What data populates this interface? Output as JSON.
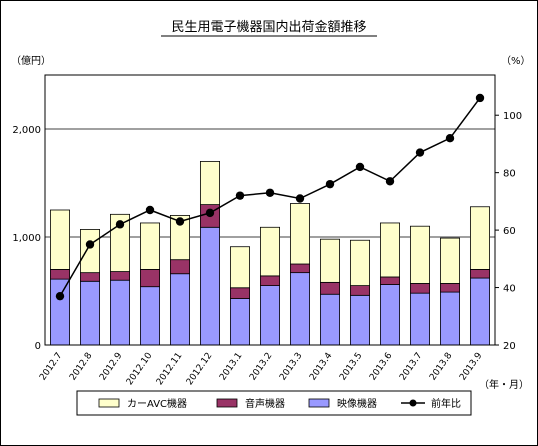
{
  "chart_data": {
    "type": "bar",
    "title": "民生用電子機器国内出荷金額推移",
    "left_unit": "（億円）",
    "right_unit": "（%）",
    "x_unit": "（年・月）",
    "categories": [
      "2012.7",
      "2012.8",
      "2012.9",
      "2012.10",
      "2012.11",
      "2012.12",
      "2013.1",
      "2013.2",
      "2013.3",
      "2013.4",
      "2013.5",
      "2013.6",
      "2013.7",
      "2013.8",
      "2013.9"
    ],
    "left_axis": {
      "min": 0,
      "max": 2500,
      "ticks": [
        0,
        1000,
        2000
      ],
      "tick_labels": [
        "0",
        "1,000",
        "2,000"
      ]
    },
    "right_axis": {
      "min": 20,
      "max": 114,
      "ticks": [
        20,
        40,
        60,
        80,
        100
      ],
      "tick_labels": [
        "20",
        "40",
        "60",
        "80",
        "100"
      ]
    },
    "grid": "horizontal",
    "legend_position": "bottom",
    "series": [
      {
        "name": "映像機器",
        "kind": "stacked-bar",
        "color": "#9999ff",
        "values": [
          610,
          590,
          600,
          540,
          660,
          1090,
          430,
          550,
          670,
          470,
          460,
          560,
          480,
          490,
          620
        ]
      },
      {
        "name": "音声機器",
        "kind": "stacked-bar",
        "color": "#993366",
        "values": [
          90,
          80,
          80,
          160,
          130,
          210,
          100,
          90,
          80,
          110,
          90,
          70,
          90,
          80,
          80
        ]
      },
      {
        "name": "カーAVC機器",
        "kind": "stacked-bar",
        "color": "#ffffcc",
        "values": [
          550,
          400,
          530,
          430,
          410,
          400,
          380,
          450,
          560,
          400,
          420,
          500,
          530,
          420,
          580
        ]
      },
      {
        "name": "前年比",
        "kind": "line",
        "axis": "right",
        "color": "#000000",
        "values": [
          37,
          55,
          62,
          67,
          63,
          66,
          72,
          73,
          71,
          76,
          82,
          77,
          87,
          92,
          106
        ]
      }
    ],
    "legend_order": [
      "カーAVC機器",
      "音声機器",
      "映像機器",
      "前年比"
    ]
  }
}
